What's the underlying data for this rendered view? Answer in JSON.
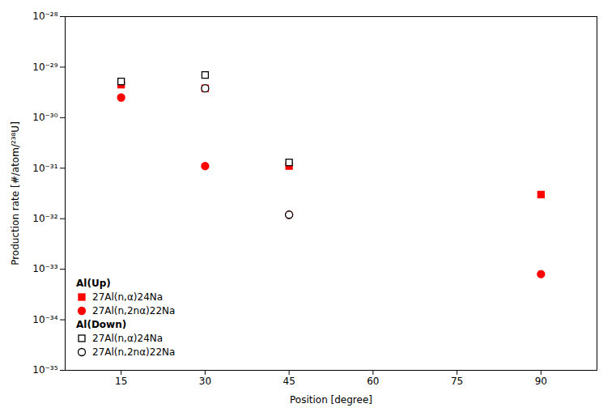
{
  "chart_data": {
    "type": "scatter",
    "xlabel": "Position [degree]",
    "ylabel": "Production rate [#/atom/²³⁸U]",
    "log": "y",
    "grid": false,
    "legend": "lower left",
    "xlim": [
      5,
      100
    ],
    "xticks": [
      15,
      30,
      45,
      60,
      75,
      90
    ],
    "ylim": [
      1e-35,
      1e-28
    ],
    "yticks": [
      {
        "value": 1e-35,
        "label": "10⁻³⁵"
      },
      {
        "value": 1e-34,
        "label": "10⁻³⁴"
      },
      {
        "value": 1e-33,
        "label": "10⁻³³"
      },
      {
        "value": 1e-32,
        "label": "10⁻³²"
      },
      {
        "value": 1e-31,
        "label": "10⁻³¹"
      },
      {
        "value": 1e-30,
        "label": "10⁻³⁰"
      },
      {
        "value": 1e-29,
        "label": "10⁻²⁹"
      },
      {
        "value": 1e-28,
        "label": "10⁻²⁸"
      }
    ],
    "series": [
      {
        "name": "27Al(n,α)24Na",
        "group": "Al(Up)",
        "color": "#ff0000",
        "marker": "square",
        "x": [
          15,
          30,
          45,
          90
        ],
        "values": [
          4.5e-30,
          3.8e-30,
          1.1e-31,
          3e-32
        ],
        "yerr": [
          1.5e-31,
          1.5e-31,
          4e-33,
          1.5e-33
        ]
      },
      {
        "name": "27Al(n,2nα)22Na",
        "group": "Al(Up)",
        "color": "#ff0000",
        "marker": "circle",
        "x": [
          15,
          30,
          45,
          90
        ],
        "values": [
          2.5e-30,
          1.1e-31,
          1.2e-32,
          8e-34
        ],
        "yerr": [
          1e-31,
          5e-33,
          5e-34,
          4e-35
        ]
      },
      {
        "name": "27Al(n,α)24Na",
        "group": "Al(Down)",
        "color": "#000000",
        "marker": "square-open",
        "x": [
          15,
          30,
          45
        ],
        "values": [
          5.2e-30,
          7e-30,
          1.3e-31
        ],
        "yerr": [
          2e-31,
          3e-31,
          5e-33
        ]
      },
      {
        "name": "27Al(n,2nα)22Na",
        "group": "Al(Down)",
        "color": "#000000",
        "marker": "circle-open",
        "x": [
          30,
          45
        ],
        "values": [
          3.8e-30,
          1.2e-32
        ],
        "yerr": [
          2e-31,
          5e-34
        ]
      }
    ]
  }
}
